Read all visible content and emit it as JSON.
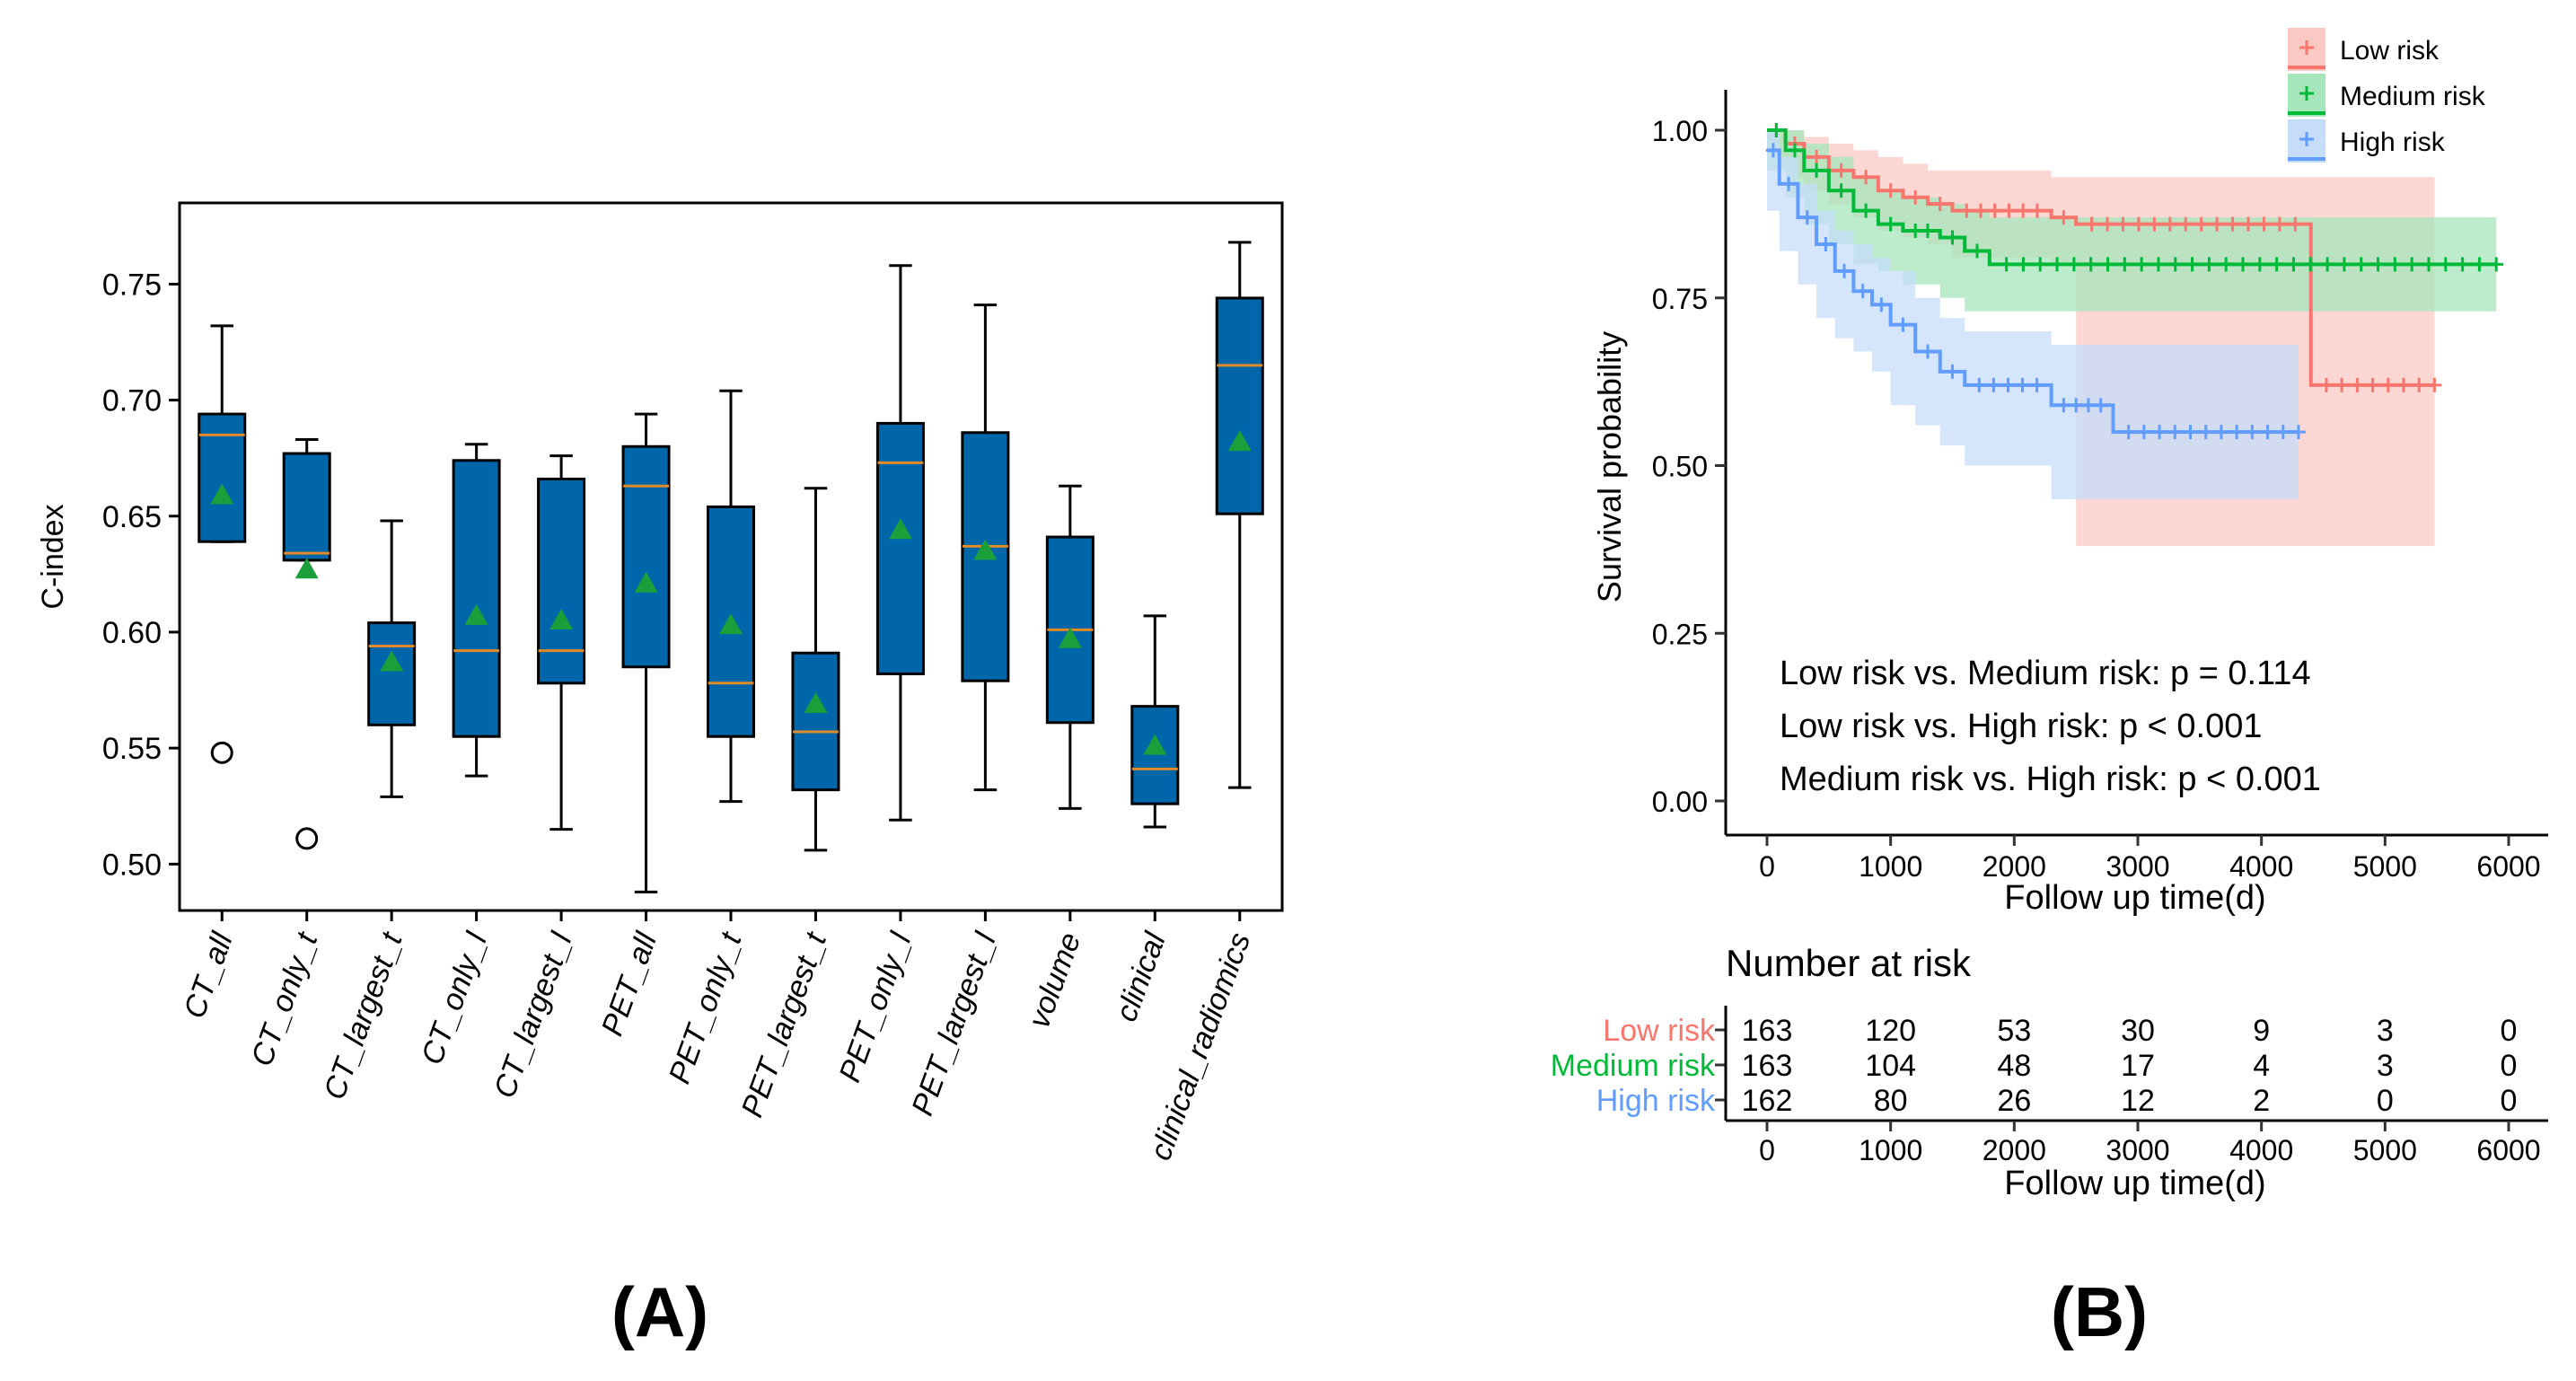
{
  "chart_data": [
    {
      "type": "box",
      "panel_label": "(A)",
      "ylabel": "C-index",
      "ylim": [
        0.48,
        0.785
      ],
      "yticks": [
        0.5,
        0.55,
        0.6,
        0.65,
        0.7,
        0.75
      ],
      "ytick_labels": [
        "0.50",
        "0.55",
        "0.60",
        "0.65",
        "0.70",
        "0.75"
      ],
      "box_color": "#0066aa",
      "median_color": "#e08a28",
      "mean_color": "#1a9f3a",
      "categories": [
        "CT_all",
        "CT_only_t",
        "CT_largest_t",
        "CT_only_l",
        "CT_largest_l",
        "PET_all",
        "PET_only_t",
        "PET_largest_t",
        "PET_only_l",
        "PET_largest_l",
        "volume",
        "clinical",
        "clinical_radiomics"
      ],
      "boxes": [
        {
          "whislo": 0.639,
          "q1": 0.639,
          "med": 0.685,
          "q3": 0.694,
          "whishi": 0.732,
          "mean": 0.659,
          "fliers": [
            0.548
          ]
        },
        {
          "whislo": 0.631,
          "q1": 0.631,
          "med": 0.634,
          "q3": 0.677,
          "whishi": 0.683,
          "mean": 0.627,
          "fliers": [
            0.511
          ]
        },
        {
          "whislo": 0.529,
          "q1": 0.56,
          "med": 0.594,
          "q3": 0.604,
          "whishi": 0.648,
          "mean": 0.587,
          "fliers": []
        },
        {
          "whislo": 0.538,
          "q1": 0.555,
          "med": 0.592,
          "q3": 0.674,
          "whishi": 0.681,
          "mean": 0.607,
          "fliers": []
        },
        {
          "whislo": 0.515,
          "q1": 0.578,
          "med": 0.592,
          "q3": 0.666,
          "whishi": 0.676,
          "mean": 0.605,
          "fliers": []
        },
        {
          "whislo": 0.488,
          "q1": 0.585,
          "med": 0.663,
          "q3": 0.68,
          "whishi": 0.694,
          "mean": 0.621,
          "fliers": []
        },
        {
          "whislo": 0.527,
          "q1": 0.555,
          "med": 0.578,
          "q3": 0.654,
          "whishi": 0.704,
          "mean": 0.603,
          "fliers": []
        },
        {
          "whislo": 0.506,
          "q1": 0.532,
          "med": 0.557,
          "q3": 0.591,
          "whishi": 0.662,
          "mean": 0.569,
          "fliers": []
        },
        {
          "whislo": 0.519,
          "q1": 0.582,
          "med": 0.673,
          "q3": 0.69,
          "whishi": 0.758,
          "mean": 0.644,
          "fliers": []
        },
        {
          "whislo": 0.532,
          "q1": 0.579,
          "med": 0.637,
          "q3": 0.686,
          "whishi": 0.741,
          "mean": 0.635,
          "fliers": []
        },
        {
          "whislo": 0.524,
          "q1": 0.561,
          "med": 0.601,
          "q3": 0.641,
          "whishi": 0.663,
          "mean": 0.597,
          "fliers": []
        },
        {
          "whislo": 0.516,
          "q1": 0.526,
          "med": 0.541,
          "q3": 0.568,
          "whishi": 0.607,
          "mean": 0.551,
          "fliers": []
        },
        {
          "whislo": 0.533,
          "q1": 0.651,
          "med": 0.715,
          "q3": 0.744,
          "whishi": 0.768,
          "mean": 0.682,
          "fliers": []
        }
      ]
    },
    {
      "type": "line",
      "subtype": "kaplan-meier",
      "panel_label": "(B)",
      "xlabel": "Follow up time(d)",
      "ylabel": "Survival probability",
      "xlim": [
        -300,
        6300
      ],
      "ylim": [
        0,
        1.03
      ],
      "xticks": [
        0,
        1000,
        2000,
        3000,
        4000,
        5000,
        6000
      ],
      "xtick_labels": [
        "0",
        "1000",
        "2000",
        "3000",
        "4000",
        "5000",
        "6000"
      ],
      "yticks": [
        0.0,
        0.25,
        0.5,
        0.75,
        1.0
      ],
      "ytick_labels": [
        "0.00",
        "0.25",
        "0.50",
        "0.75",
        "1.00"
      ],
      "legend_position": "top-right",
      "series": [
        {
          "name": "Low risk",
          "color": "#f8766d",
          "fill": "#fbc9c4",
          "x": [
            0,
            150,
            300,
            500,
            700,
            900,
            1100,
            1300,
            1500,
            2300,
            2500,
            4400,
            5400
          ],
          "y": [
            1.0,
            0.98,
            0.96,
            0.94,
            0.93,
            0.91,
            0.9,
            0.89,
            0.88,
            0.87,
            0.86,
            0.62,
            0.62
          ],
          "lower": [
            1.0,
            0.96,
            0.93,
            0.91,
            0.89,
            0.87,
            0.85,
            0.84,
            0.83,
            0.81,
            0.8,
            0.38,
            0.38
          ],
          "upper": [
            1.0,
            1.0,
            0.99,
            0.98,
            0.97,
            0.96,
            0.95,
            0.94,
            0.94,
            0.93,
            0.93,
            0.93,
            0.93
          ]
        },
        {
          "name": "Medium risk",
          "color": "#00ba38",
          "fill": "#a6e6bb",
          "x": [
            0,
            150,
            300,
            500,
            700,
            900,
            1100,
            1400,
            1600,
            1800,
            5900
          ],
          "y": [
            1.0,
            0.97,
            0.94,
            0.91,
            0.88,
            0.86,
            0.85,
            0.84,
            0.82,
            0.8,
            0.8
          ],
          "lower": [
            1.0,
            0.94,
            0.9,
            0.86,
            0.83,
            0.8,
            0.79,
            0.77,
            0.75,
            0.73,
            0.73
          ],
          "upper": [
            1.0,
            1.0,
            0.98,
            0.96,
            0.93,
            0.91,
            0.9,
            0.89,
            0.88,
            0.87,
            0.87
          ]
        },
        {
          "name": "High risk",
          "color": "#619cff",
          "fill": "#c5dcfb",
          "x": [
            0,
            100,
            250,
            400,
            550,
            700,
            850,
            1000,
            1200,
            1400,
            1600,
            2300,
            2800,
            4300
          ],
          "y": [
            0.97,
            0.92,
            0.87,
            0.83,
            0.79,
            0.76,
            0.74,
            0.71,
            0.67,
            0.64,
            0.62,
            0.59,
            0.55,
            0.55
          ],
          "lower": [
            0.94,
            0.88,
            0.82,
            0.77,
            0.72,
            0.69,
            0.67,
            0.64,
            0.59,
            0.56,
            0.53,
            0.5,
            0.45,
            0.45
          ],
          "upper": [
            1.0,
            0.96,
            0.92,
            0.88,
            0.85,
            0.83,
            0.81,
            0.79,
            0.75,
            0.72,
            0.7,
            0.68,
            0.68,
            0.68
          ]
        }
      ],
      "annotations": [
        "Low risk vs. Medium risk: p = 0.114",
        "Low risk vs. High risk: p < 0.001",
        "Medium risk vs. High risk: p < 0.001"
      ],
      "risk_table": {
        "title": "Number at risk",
        "xlabel": "Follow up time(d)",
        "rows": [
          {
            "name": "Low risk",
            "color": "#f8766d",
            "values": [
              163,
              120,
              53,
              30,
              9,
              3,
              0
            ]
          },
          {
            "name": "Medium risk",
            "color": "#00ba38",
            "values": [
              163,
              104,
              48,
              17,
              4,
              3,
              0
            ]
          },
          {
            "name": "High risk",
            "color": "#619cff",
            "values": [
              162,
              80,
              26,
              12,
              2,
              0,
              0
            ]
          }
        ]
      }
    }
  ]
}
